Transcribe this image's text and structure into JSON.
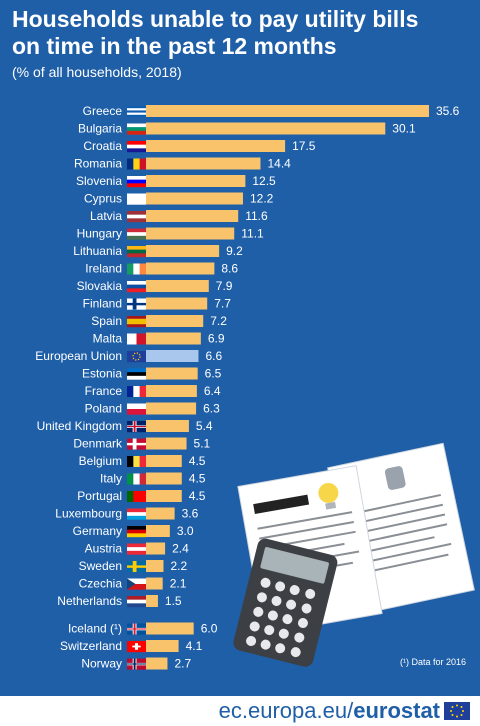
{
  "header": {
    "title_line1": "Households unable to pay utility bills",
    "title_line2": "on time in the past 12 months",
    "subtitle": "(% of all households, 2018)"
  },
  "footnote": "(¹) Data for 2016",
  "footer": {
    "site": "ec.europa.eu/",
    "brand": "eurostat"
  },
  "colors": {
    "background": "#1f5fa8",
    "bar": "#f8c36a",
    "bar_eu": "#a9c7ec",
    "text": "#ffffff"
  },
  "chart_data": {
    "type": "bar",
    "orientation": "horizontal",
    "title": "Households unable to pay utility bills on time in the past 12 months",
    "subtitle": "(% of all households, 2018)",
    "xlabel": "",
    "ylabel": "",
    "xlim": [
      0,
      36
    ],
    "grid": false,
    "categories": [
      "Greece",
      "Bulgaria",
      "Croatia",
      "Romania",
      "Slovenia",
      "Cyprus",
      "Latvia",
      "Hungary",
      "Lithuania",
      "Ireland",
      "Slovakia",
      "Finland",
      "Spain",
      "Malta",
      "European Union",
      "Estonia",
      "France",
      "Poland",
      "United Kingdom",
      "Denmark",
      "Belgium",
      "Italy",
      "Portugal",
      "Luxembourg",
      "Germany",
      "Austria",
      "Sweden",
      "Czechia",
      "Netherlands",
      "Iceland (¹)",
      "Switzerland",
      "Norway"
    ],
    "values": [
      35.6,
      30.1,
      17.5,
      14.4,
      12.5,
      12.2,
      11.6,
      11.1,
      9.2,
      8.6,
      7.9,
      7.7,
      7.2,
      6.9,
      6.6,
      6.5,
      6.4,
      6.3,
      5.4,
      5.1,
      4.5,
      4.5,
      4.5,
      3.6,
      3.0,
      2.4,
      2.2,
      2.1,
      1.5,
      6.0,
      4.1,
      2.7
    ],
    "value_labels": [
      "35.6",
      "30.1",
      "17.5",
      "14.4",
      "12.5",
      "12.2",
      "11.6",
      "11.1",
      "9.2",
      "8.6",
      "7.9",
      "7.7",
      "7.2",
      "6.9",
      "6.6",
      "6.5",
      "6.4",
      "6.3",
      "5.4",
      "5.1",
      "4.5",
      "4.5",
      "4.5",
      "3.6",
      "3.0",
      "2.4",
      "2.2",
      "2.1",
      "1.5",
      "6.0",
      "4.1",
      "2.7"
    ],
    "highlight": "European Union",
    "flag_icons": [
      "greece-flag-icon",
      "bulgaria-flag-icon",
      "croatia-flag-icon",
      "romania-flag-icon",
      "slovenia-flag-icon",
      "cyprus-flag-icon",
      "latvia-flag-icon",
      "hungary-flag-icon",
      "lithuania-flag-icon",
      "ireland-flag-icon",
      "slovakia-flag-icon",
      "finland-flag-icon",
      "spain-flag-icon",
      "malta-flag-icon",
      "eu-flag-icon",
      "estonia-flag-icon",
      "france-flag-icon",
      "poland-flag-icon",
      "uk-flag-icon",
      "denmark-flag-icon",
      "belgium-flag-icon",
      "italy-flag-icon",
      "portugal-flag-icon",
      "luxembourg-flag-icon",
      "germany-flag-icon",
      "austria-flag-icon",
      "sweden-flag-icon",
      "czechia-flag-icon",
      "netherlands-flag-icon",
      "iceland-flag-icon",
      "switzerland-flag-icon",
      "norway-flag-icon"
    ]
  }
}
